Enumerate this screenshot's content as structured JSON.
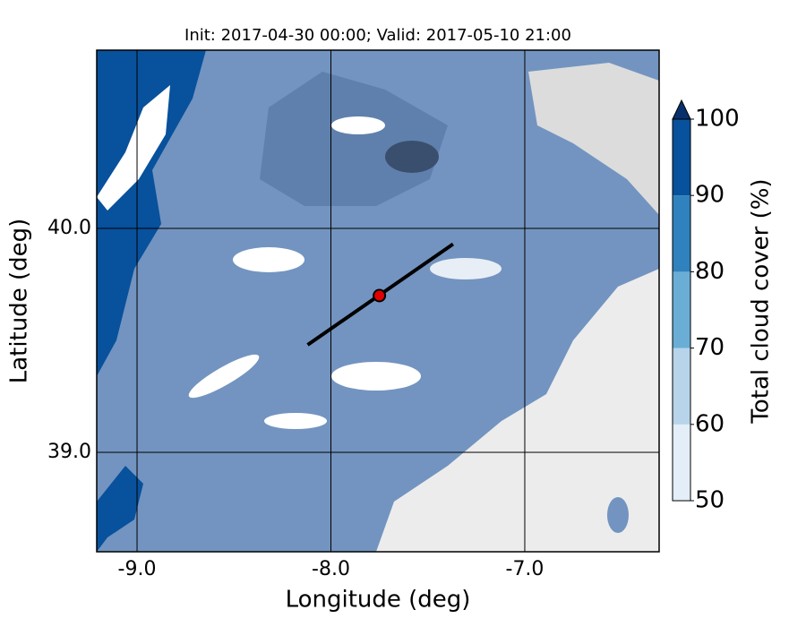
{
  "chart_data": {
    "type": "map",
    "title": "Init: 2017-04-30 00:00; Valid: 2017-05-10 21:00",
    "xlabel": "Longitude (deg)",
    "ylabel": "Latitude (deg)",
    "xlim": [
      -9.208,
      -6.307
    ],
    "ylim": [
      38.556,
      40.796
    ],
    "xticks": [
      {
        "value": -9,
        "label": "-9.0"
      },
      {
        "value": -8,
        "label": "-8.0"
      },
      {
        "value": -7,
        "label": "-7.0"
      }
    ],
    "yticks": [
      {
        "value": 39,
        "label": "39.0"
      },
      {
        "value": 40,
        "label": "40.0"
      }
    ],
    "grid": true,
    "transect": {
      "start": [
        -8.12,
        39.48
      ],
      "end": [
        -7.37,
        39.93
      ],
      "color": "#000000"
    },
    "point": {
      "lon": -7.75,
      "lat": 39.7,
      "color": "#e00000"
    },
    "colorbar": {
      "label": "Total cloud cover (%)",
      "ticks": [
        50,
        60,
        70,
        80,
        90,
        100
      ],
      "colors": [
        "#e3eef8",
        "#b7d4ea",
        "#6aaed6",
        "#3082be",
        "#08519c"
      ],
      "extend_color": "#08306b"
    }
  }
}
